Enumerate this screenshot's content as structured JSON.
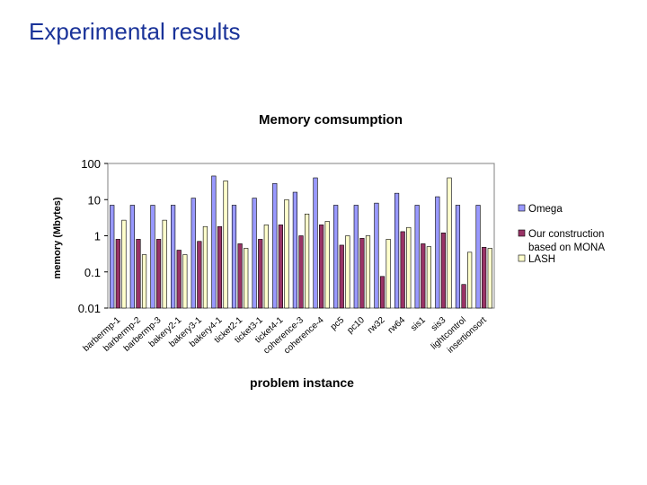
{
  "slide_title": "Experimental results",
  "chart_data": {
    "type": "bar",
    "title": "Memory comsumption",
    "xlabel": "problem instance",
    "ylabel": "memory (Mbytes)",
    "y_scale": "log",
    "ylim": [
      0.01,
      100
    ],
    "y_ticks": [
      "100",
      "10",
      "1",
      "0.1",
      "0.01"
    ],
    "legend_position": "right",
    "categories": [
      "barbermp-1",
      "barbermp-2",
      "barbermp-3",
      "bakery2-1",
      "bakery3-1",
      "bakery4-1",
      "ticket2-1",
      "ticket3-1",
      "ticket4-1",
      "coherence-3",
      "coherence-4",
      "pc5",
      "pc10",
      "rw32",
      "rw64",
      "sis1",
      "sis3",
      "lightcontrol",
      "insertionsort"
    ],
    "series": [
      {
        "name": "Omega",
        "color": "#9999ff",
        "values": [
          7,
          7,
          7,
          7,
          11,
          45,
          7,
          11,
          28,
          16,
          40,
          7,
          7,
          8,
          15,
          7,
          12,
          7,
          7
        ]
      },
      {
        "name": "Our construction based on MONA",
        "color": "#993366",
        "values": [
          0.8,
          0.8,
          0.8,
          0.4,
          0.7,
          1.8,
          0.6,
          0.8,
          2.0,
          1.0,
          2.0,
          0.55,
          0.85,
          0.075,
          1.3,
          0.6,
          1.2,
          0.045,
          0.48
        ]
      },
      {
        "name": "LASH",
        "color": "#ffffcc",
        "values": [
          2.7,
          0.3,
          2.7,
          0.3,
          1.8,
          33,
          0.45,
          2.0,
          10,
          4.0,
          2.5,
          1.0,
          1.0,
          0.8,
          1.7,
          0.5,
          40,
          0.35,
          0.45
        ]
      }
    ]
  }
}
